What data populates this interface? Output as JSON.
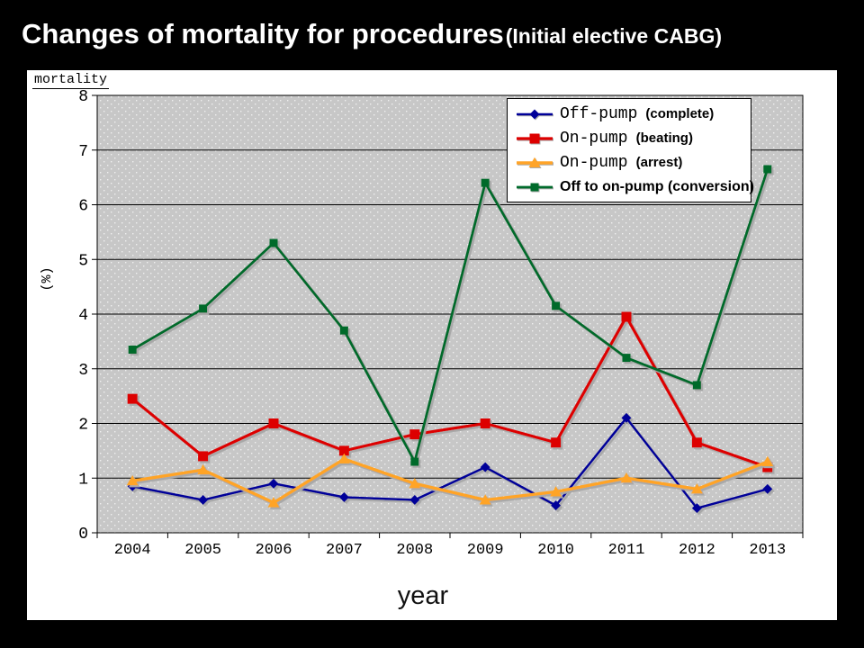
{
  "page_title": {
    "main": "Changes of mortality for procedures",
    "sub": "(Initial elective CABG)"
  },
  "chart_data": {
    "type": "line",
    "title": "Changes of mortality for procedures (Initial elective CABG)",
    "categories": [
      "2004",
      "2005",
      "2006",
      "2007",
      "2008",
      "2009",
      "2010",
      "2011",
      "2012",
      "2013"
    ],
    "series": [
      {
        "name": "Off-pump",
        "qualifier": "(complete)",
        "color": "#000099",
        "marker": "diamond",
        "legend_bold": false,
        "values": [
          0.85,
          0.6,
          0.9,
          0.65,
          0.6,
          1.2,
          0.5,
          2.1,
          0.45,
          0.8
        ]
      },
      {
        "name": "On-pump",
        "qualifier": "(beating)",
        "color": "#DD0000",
        "marker": "square",
        "legend_bold": false,
        "values": [
          2.45,
          1.4,
          2.0,
          1.5,
          1.8,
          2.0,
          1.65,
          3.95,
          1.65,
          1.2
        ]
      },
      {
        "name": "On-pump",
        "qualifier": "(arrest)",
        "color": "#FFA428",
        "marker": "triangle",
        "legend_bold": false,
        "values": [
          0.95,
          1.15,
          0.55,
          1.35,
          0.9,
          0.6,
          0.75,
          1.0,
          0.8,
          1.3
        ]
      },
      {
        "name": "Off to on-pump (conversion)",
        "qualifier": "",
        "color": "#006B2B",
        "marker": "square-small",
        "legend_bold": true,
        "values": [
          3.35,
          4.1,
          5.3,
          3.7,
          1.3,
          6.4,
          4.15,
          3.2,
          2.7,
          6.65
        ]
      }
    ],
    "xlabel": "year",
    "ylabel": "(%)",
    "corner_label": "mortality",
    "ylim": [
      0,
      8
    ],
    "ytick_step": 1,
    "grid": true,
    "legend_position": "top-right-inside",
    "plot_bg_color": "#C7C7C7",
    "panel_bg_color": "#FFFFFF",
    "page_bg_color": "#000000"
  }
}
